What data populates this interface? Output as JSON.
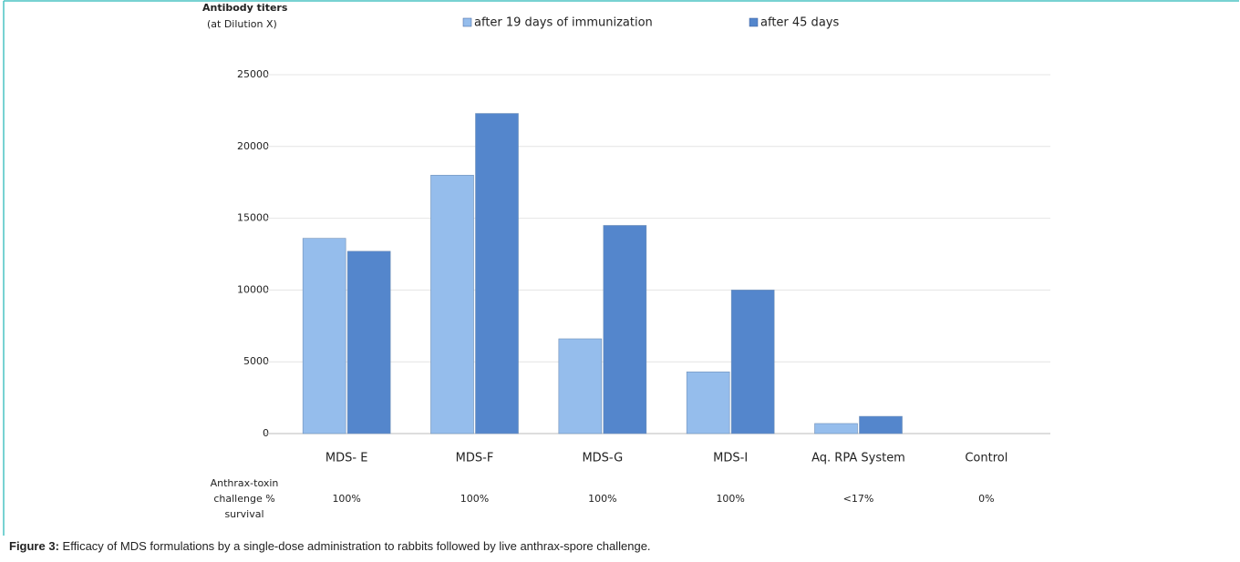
{
  "chart_data": {
    "type": "bar",
    "y_axis_title": [
      "Antibody titers",
      "(at Dilution X)"
    ],
    "categories": [
      "MDS- E",
      "MDS-F",
      "MDS-G",
      "MDS-I",
      "Aq. RPA System",
      "Control"
    ],
    "series": [
      {
        "name": "after 19 days of immunization",
        "color": "#95bdec",
        "values": [
          13600,
          18000,
          6600,
          4300,
          700,
          0
        ]
      },
      {
        "name": "after 45 days",
        "color": "#5486cc",
        "values": [
          12700,
          22300,
          14500,
          10000,
          1200,
          0
        ]
      }
    ],
    "ylim": [
      0,
      25000
    ],
    "yticks": [
      0,
      5000,
      10000,
      15000,
      20000,
      25000
    ],
    "grid": true,
    "survival_title": [
      "Anthrax-toxin",
      "challenge %",
      "survival"
    ],
    "survival": [
      "100%",
      "100%",
      "100%",
      "100%",
      "<17%",
      "0%"
    ],
    "caption_label": "Figure 3:",
    "caption": " Efficacy of MDS formulations by a single-dose administration to rabbits followed by live anthrax-spore challenge."
  }
}
